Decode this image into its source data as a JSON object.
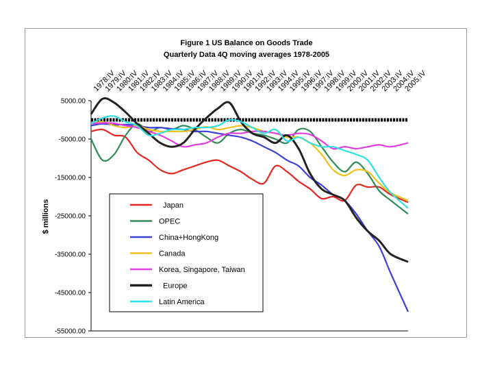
{
  "chart_data": {
    "type": "line",
    "title": "Figure 1 US Balance on Goods Trade",
    "subtitle": "Quarterly Data 4Q moving averages 1978-2005",
    "xlabel": "",
    "ylabel": "$ millions",
    "ylim": [
      -55000,
      5000
    ],
    "y_ticks": [
      "5000.00",
      "-5000.00",
      "-15000.00",
      "-25000.00",
      "-35000.00",
      "-45000.00",
      "-55000.00"
    ],
    "y_tick_values": [
      5000,
      -5000,
      -15000,
      -25000,
      -35000,
      -45000,
      -55000
    ],
    "x_ticks": [
      "1978:IV",
      "1979:IV",
      "1980:IV",
      "1981:IV",
      "1982:IV",
      "1983:IV",
      "1984:IV",
      "1985:IV",
      "1986:IV",
      "1987:IV",
      "1988:IV",
      "1989:IV",
      "1990:IV",
      "1991:IV",
      "1992:IV",
      "1993:IV",
      "1994:IV",
      "1995:IV",
      "1996:IV",
      "1997:IV",
      "1998:IV",
      "1999:IV",
      "2000:IV",
      "2001:IV",
      "2002:IV",
      "2003:IV",
      "2004:IV",
      "2005:IV"
    ],
    "x_years": [
      1978,
      1979,
      1980,
      1981,
      1982,
      1983,
      1984,
      1985,
      1986,
      1987,
      1988,
      1989,
      1990,
      1991,
      1992,
      1993,
      1994,
      1995,
      1996,
      1997,
      1998,
      1999,
      2000,
      2001,
      2002,
      2003,
      2004,
      2005
    ],
    "zero_line": true,
    "grid": false,
    "legend_position": "bottom-left",
    "series": [
      {
        "name": "Japan",
        "color": "#e3261f",
        "x": [
          1978,
          1979,
          1980,
          1981,
          1982,
          1983,
          1984,
          1985,
          1986,
          1987,
          1988,
          1989,
          1990,
          1991,
          1992,
          1993,
          1994,
          1995,
          1996,
          1997,
          1998,
          1999,
          2000,
          2001,
          2002,
          2003,
          2004,
          2005.5
        ],
        "values": [
          -3000,
          -2500,
          -4000,
          -4500,
          -8500,
          -10500,
          -13000,
          -14000,
          -13000,
          -12000,
          -11000,
          -10500,
          -12000,
          -13500,
          -15500,
          -16500,
          -12000,
          -13500,
          -16000,
          -18000,
          -20500,
          -20000,
          -21000,
          -17000,
          -17500,
          -17500,
          -19500,
          -21500
        ]
      },
      {
        "name": "OPEC",
        "color": "#2e8b57",
        "x": [
          1978,
          1979,
          1980,
          1981,
          1982,
          1983,
          1984,
          1985,
          1986,
          1987,
          1988,
          1989,
          1990,
          1991,
          1992,
          1993,
          1994,
          1995,
          1996,
          1997,
          1998,
          1999,
          2000,
          2001,
          2002,
          2003,
          2004,
          2005.5
        ],
        "values": [
          -5000,
          -10500,
          -9000,
          -4000,
          -1000,
          -3000,
          -2000,
          -2500,
          -1500,
          -2500,
          -4500,
          -6000,
          -3500,
          -2500,
          -3500,
          -4000,
          -5000,
          -6000,
          -2500,
          -3000,
          -7000,
          -11000,
          -13500,
          -11000,
          -14000,
          -18500,
          -21000,
          -24500
        ]
      },
      {
        "name": "China+HongKong",
        "color": "#3b3fd9",
        "x": [
          1978,
          1979,
          1980,
          1981,
          1982,
          1983,
          1984,
          1985,
          1986,
          1987,
          1988,
          1989,
          1990,
          1991,
          1992,
          1993,
          1994,
          1995,
          1996,
          1997,
          1998,
          1999,
          2000,
          2001,
          2002,
          2003,
          2004,
          2005.5
        ],
        "values": [
          -1500,
          -1000,
          -1300,
          -1200,
          -1500,
          -2000,
          -2000,
          -2300,
          -2500,
          -3000,
          -3000,
          -3500,
          -4000,
          -4500,
          -5500,
          -7000,
          -8500,
          -10500,
          -12000,
          -15000,
          -17000,
          -19500,
          -21000,
          -24500,
          -29000,
          -33000,
          -40000,
          -50000
        ]
      },
      {
        "name": "Canada",
        "color": "#f2c01e",
        "x": [
          1978,
          1979,
          1980,
          1981,
          1982,
          1983,
          1984,
          1985,
          1986,
          1987,
          1988,
          1989,
          1990,
          1991,
          1992,
          1993,
          1994,
          1995,
          1996,
          1997,
          1998,
          1999,
          2000,
          2001,
          2002,
          2003,
          2004,
          2005.5
        ],
        "values": [
          -1000,
          -500,
          -1500,
          -2000,
          -1500,
          -2500,
          -3000,
          -3000,
          -3000,
          -2500,
          -1800,
          -2500,
          -2000,
          -1500,
          -2000,
          -3000,
          -3500,
          -4500,
          -4500,
          -6000,
          -9000,
          -13000,
          -14500,
          -13000,
          -13500,
          -16500,
          -19000,
          -21000
        ]
      },
      {
        "name": "Korea, Singapore, Taiwan",
        "color": "#e23be0",
        "x": [
          1978,
          1979,
          1980,
          1981,
          1982,
          1983,
          1984,
          1985,
          1986,
          1987,
          1988,
          1989,
          1990,
          1991,
          1992,
          1993,
          1994,
          1995,
          1996,
          1997,
          1998,
          1999,
          2000,
          2001,
          2002,
          2003,
          2004,
          2005.5
        ],
        "values": [
          -1000,
          -800,
          -900,
          -1500,
          -2000,
          -3000,
          -4000,
          -5500,
          -7000,
          -6500,
          -6000,
          -4500,
          -3500,
          -3500,
          -3000,
          -3000,
          -3500,
          -4000,
          -3500,
          -3800,
          -5500,
          -7500,
          -7000,
          -7500,
          -7000,
          -6500,
          -7000,
          -6000
        ]
      },
      {
        "name": "Europe",
        "color": "#222222",
        "x": [
          1978,
          1979,
          1980,
          1981,
          1982,
          1983,
          1984,
          1985,
          1986,
          1987,
          1988,
          1989,
          1990,
          1991,
          1992,
          1993,
          1994,
          1995,
          1996,
          1997,
          1998,
          1999,
          2000,
          2001,
          2002,
          2003,
          2004,
          2005.5
        ],
        "values": [
          1500,
          5500,
          4500,
          2000,
          -1000,
          -3500,
          -6000,
          -7000,
          -6000,
          -2500,
          500,
          3000,
          4500,
          -500,
          -3500,
          -4500,
          -6000,
          -4000,
          -7500,
          -14000,
          -18000,
          -19500,
          -21000,
          -25500,
          -29000,
          -31500,
          -35000,
          -37000
        ]
      },
      {
        "name": "Latin America",
        "color": "#2ee0e0",
        "x": [
          1978,
          1979,
          1980,
          1981,
          1982,
          1983,
          1984,
          1985,
          1986,
          1987,
          1988,
          1989,
          1990,
          1991,
          1992,
          1993,
          1994,
          1995,
          1996,
          1997,
          1998,
          1999,
          2000,
          2001,
          2002,
          2003,
          2004,
          2005.5
        ],
        "values": [
          -1000,
          500,
          1000,
          -500,
          -1500,
          -4000,
          -3500,
          -2500,
          -2500,
          -2000,
          -2000,
          -1500,
          0,
          -500,
          -2000,
          -3500,
          -2500,
          -5500,
          -4500,
          -6000,
          -7000,
          -7000,
          -8000,
          -9000,
          -10500,
          -15000,
          -19000,
          -23000
        ]
      }
    ]
  }
}
